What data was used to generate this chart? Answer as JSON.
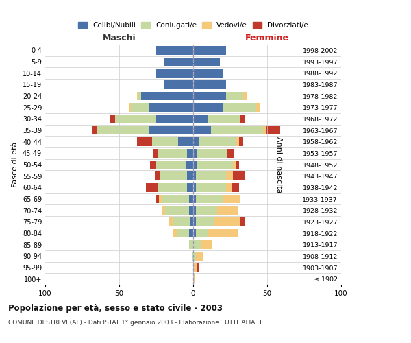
{
  "age_groups": [
    "100+",
    "95-99",
    "90-94",
    "85-89",
    "80-84",
    "75-79",
    "70-74",
    "65-69",
    "60-64",
    "55-59",
    "50-54",
    "45-49",
    "40-44",
    "35-39",
    "30-34",
    "25-29",
    "20-24",
    "15-19",
    "10-14",
    "5-9",
    "0-4"
  ],
  "birth_years": [
    "≤ 1902",
    "1903-1907",
    "1908-1912",
    "1913-1917",
    "1918-1922",
    "1923-1927",
    "1928-1932",
    "1933-1937",
    "1938-1942",
    "1943-1947",
    "1948-1952",
    "1953-1957",
    "1958-1962",
    "1963-1967",
    "1968-1972",
    "1973-1977",
    "1978-1982",
    "1983-1987",
    "1988-1992",
    "1993-1997",
    "1998-2002"
  ],
  "maschi_celibi": [
    0,
    0,
    0,
    0,
    3,
    2,
    3,
    3,
    4,
    4,
    5,
    4,
    10,
    30,
    25,
    30,
    35,
    20,
    25,
    20,
    25
  ],
  "maschi_coniugati": [
    0,
    0,
    1,
    3,
    8,
    12,
    16,
    18,
    20,
    18,
    20,
    20,
    18,
    35,
    28,
    12,
    2,
    0,
    0,
    0,
    0
  ],
  "maschi_vedovi": [
    0,
    0,
    0,
    0,
    3,
    2,
    2,
    2,
    0,
    0,
    0,
    0,
    0,
    0,
    0,
    1,
    1,
    0,
    0,
    0,
    0
  ],
  "maschi_divorziati": [
    0,
    0,
    0,
    0,
    0,
    0,
    0,
    2,
    8,
    4,
    4,
    3,
    10,
    3,
    3,
    0,
    0,
    0,
    0,
    0,
    0
  ],
  "femmine_nubili": [
    0,
    0,
    0,
    0,
    2,
    2,
    2,
    2,
    2,
    2,
    3,
    3,
    4,
    12,
    10,
    20,
    22,
    22,
    20,
    18,
    22
  ],
  "femmine_coniugate": [
    0,
    0,
    2,
    5,
    8,
    12,
    14,
    18,
    20,
    20,
    24,
    20,
    25,
    35,
    22,
    22,
    12,
    0,
    0,
    0,
    0
  ],
  "femmine_vedove": [
    1,
    3,
    5,
    8,
    20,
    18,
    14,
    12,
    4,
    5,
    2,
    0,
    2,
    2,
    0,
    3,
    2,
    0,
    0,
    0,
    0
  ],
  "femmine_divorziate": [
    0,
    1,
    0,
    0,
    0,
    3,
    0,
    0,
    5,
    8,
    2,
    5,
    3,
    10,
    3,
    0,
    0,
    0,
    0,
    0,
    0
  ],
  "colors": {
    "celibi": "#4a72a8",
    "coniugati": "#c5d9a0",
    "vedovi": "#f5c87a",
    "divorziati": "#c0392b"
  },
  "xlim": 100,
  "title": "Popolazione per età, sesso e stato civile - 2003",
  "subtitle": "COMUNE DI STREVI (AL) - Dati ISTAT 1° gennaio 2003 - Elaborazione TUTTITALIA.IT",
  "ylabel_left": "Fasce di età",
  "ylabel_right": "Anni di nascita",
  "xlabel_left": "Maschi",
  "xlabel_right": "Femmine",
  "background_color": "#ffffff",
  "grid_color": "#cccccc",
  "legend_labels": [
    "Celibi/Nubili",
    "Coniugati/e",
    "Vedovi/e",
    "Divorziati/e"
  ]
}
